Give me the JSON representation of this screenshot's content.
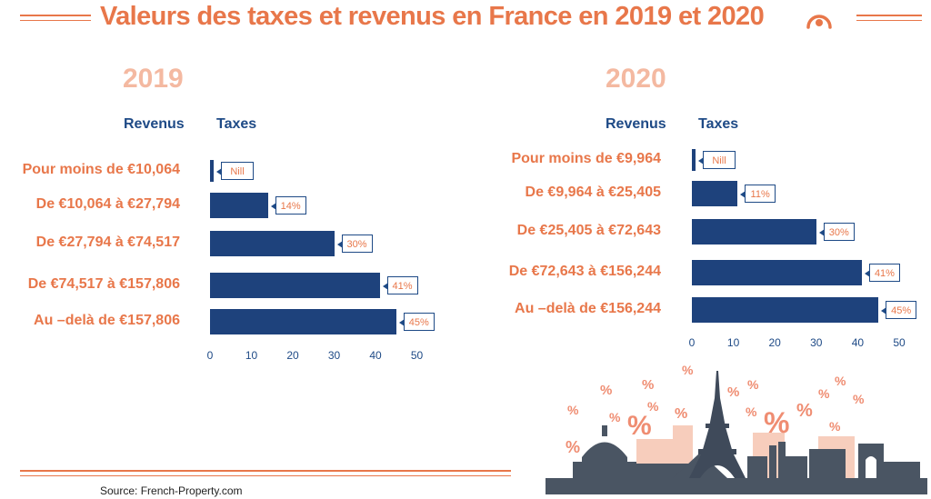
{
  "title": "Valeurs des taxes et revenus en France en 2019 et 2020",
  "source": "Source: French-Property.com",
  "colors": {
    "accent": "#e8774a",
    "bar": "#1e427c",
    "year": "#f4b9a1",
    "heading": "#1e4a86"
  },
  "icons": {
    "title_icon": "target-icon",
    "illustration": "paris-skyline-percent-icon"
  },
  "chart_data": [
    {
      "type": "bar",
      "orientation": "horizontal",
      "title": "2019",
      "ylabel": "Revenus",
      "xlabel": "Taxes",
      "categories": [
        "Pour moins de €10,064",
        "De €10,064 à €27,794",
        "De €27,794 à €74,517",
        "De €74,517 à €157,806",
        "Au –delà de €157,806"
      ],
      "values": [
        0,
        14,
        30,
        41,
        45
      ],
      "data_labels": [
        "Nill",
        "14%",
        "30%",
        "41%",
        "45%"
      ],
      "xlim": [
        0,
        50
      ],
      "xticks": [
        "0",
        "10",
        "20",
        "30",
        "40",
        "50"
      ],
      "grid": false
    },
    {
      "type": "bar",
      "orientation": "horizontal",
      "title": "2020",
      "ylabel": "Revenus",
      "xlabel": "Taxes",
      "categories": [
        "Pour moins de €9,964",
        "De €9,964 à €25,405",
        "De €25,405 à €72,643",
        "De €72,643 à €156,244",
        "Au –delà de €156,244"
      ],
      "values": [
        0,
        11,
        30,
        41,
        45
      ],
      "data_labels": [
        "Nill",
        "11%",
        "30%",
        "41%",
        "45%"
      ],
      "xlim": [
        0,
        50
      ],
      "xticks": [
        "0",
        "10",
        "20",
        "30",
        "40",
        "50"
      ],
      "grid": false
    }
  ]
}
